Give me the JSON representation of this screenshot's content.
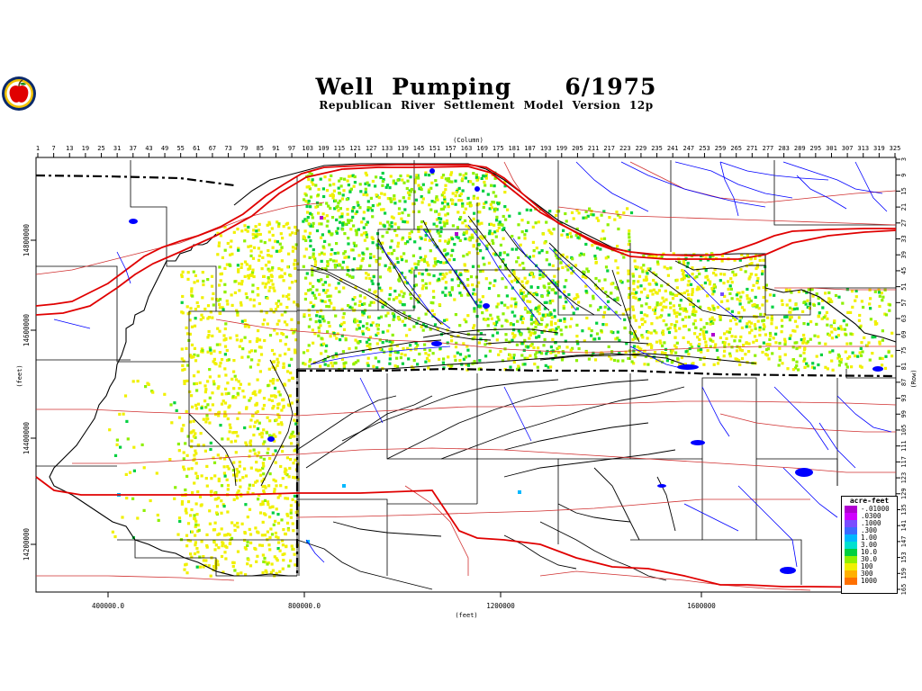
{
  "header": {
    "title": "Well Pumping   6/1975",
    "subtitle": "Republican River Settlement Model Version 12p"
  },
  "axes": {
    "column_label": "(Column)",
    "column_ticks": [
      "1",
      "7",
      "13",
      "19",
      "25",
      "31",
      "37",
      "43",
      "49",
      "55",
      "61",
      "67",
      "73",
      "79",
      "85",
      "91",
      "97",
      "103",
      "109",
      "115",
      "121",
      "127",
      "133",
      "139",
      "145",
      "151",
      "157",
      "163",
      "169",
      "175",
      "181",
      "187",
      "193",
      "199",
      "205",
      "211",
      "217",
      "223",
      "229",
      "235",
      "241",
      "247",
      "253",
      "259",
      "265",
      "271",
      "277",
      "283",
      "289",
      "295",
      "301",
      "307",
      "313",
      "319",
      "325"
    ],
    "row_label": "(Row)",
    "row_ticks": [
      "3",
      "9",
      "15",
      "21",
      "27",
      "33",
      "39",
      "45",
      "51",
      "57",
      "63",
      "69",
      "75",
      "81",
      "87",
      "93",
      "99",
      "105",
      "111",
      "117",
      "123",
      "129",
      "135",
      "141",
      "147",
      "153",
      "159",
      "165"
    ],
    "x_label": "(feet)",
    "x_ticks": [
      "400000.0",
      "800000.0",
      "1200000",
      "1600000"
    ],
    "y_label": "(feet)",
    "y_ticks": [
      "14800000",
      "14600000",
      "14400000",
      "14200000"
    ]
  },
  "legend": {
    "title": "acre-feet",
    "items": [
      {
        "label": "-.01000",
        "color": "#b000d0"
      },
      {
        "label": ".0300",
        "color": "#d000ff"
      },
      {
        "label": ".1000",
        "color": "#7a4dff"
      },
      {
        "label": ".300",
        "color": "#3b6bff"
      },
      {
        "label": "1.00",
        "color": "#00b8ff"
      },
      {
        "label": "3.00",
        "color": "#00e0d0"
      },
      {
        "label": "10.0",
        "color": "#00d040"
      },
      {
        "label": "30.0",
        "color": "#8ef000"
      },
      {
        "label": "100",
        "color": "#f0f000"
      },
      {
        "label": "300",
        "color": "#ffb000"
      },
      {
        "label": "1000",
        "color": "#ff7000"
      }
    ]
  },
  "colors": {
    "boundary": "#000000",
    "major_river": "#e00000",
    "county_line": "#d03030",
    "stream": "#0000ff",
    "pump_high": "#f0f000",
    "pump_mid": "#8ef000",
    "pump_low": "#00d040"
  }
}
